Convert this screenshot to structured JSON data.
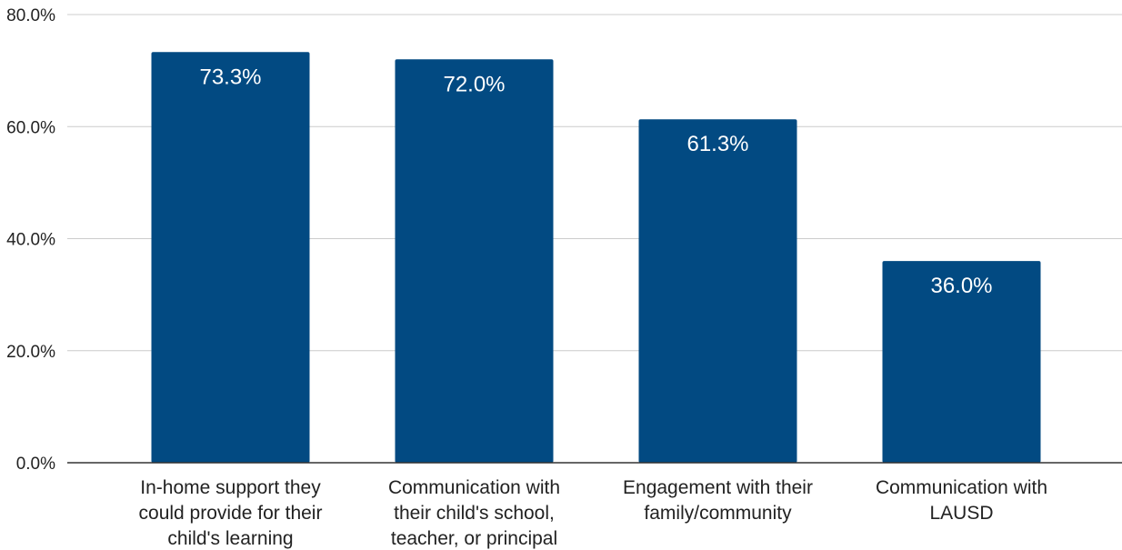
{
  "chart_data": {
    "type": "bar",
    "title": "",
    "xlabel": "",
    "ylabel": "",
    "categories": [
      "In-home support they could provide for their child's learning",
      "Communication with their child's school, teacher, or principal",
      "Engagement with their family/community",
      "Communication with LAUSD"
    ],
    "category_lines": [
      [
        "In-home support they",
        "could provide for their",
        "child's learning"
      ],
      [
        "Communication with",
        "their child's school,",
        "teacher, or principal"
      ],
      [
        "Engagement with their",
        "family/community"
      ],
      [
        "Communication with",
        "LAUSD"
      ]
    ],
    "values": [
      73.3,
      72.0,
      61.3,
      36.0
    ],
    "data_labels": [
      "73.3%",
      "72.0%",
      "61.3%",
      "36.0%"
    ],
    "ylim": [
      0,
      80
    ],
    "yticks": [
      0,
      20,
      40,
      60,
      80
    ],
    "ytick_labels": [
      "0.0%",
      "20.0%",
      "40.0%",
      "60.0%",
      "80.0%"
    ],
    "grid": true,
    "legend": "none",
    "bar_color": "#024a82"
  }
}
